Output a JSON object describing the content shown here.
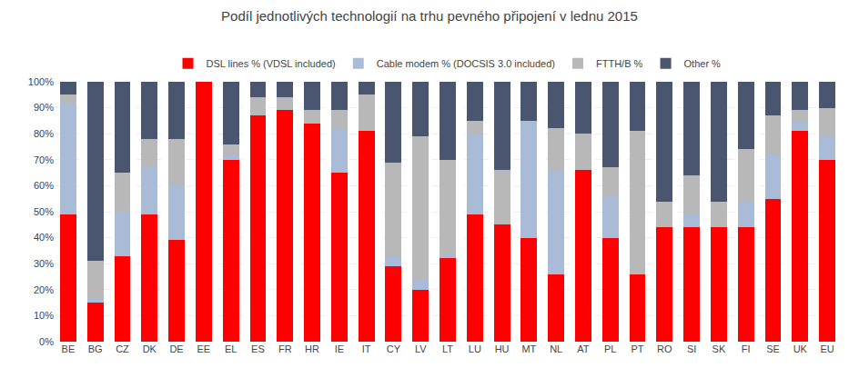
{
  "chart_data": {
    "type": "bar",
    "stacked": true,
    "title": "Podíl jednotlivých technologií na trhu pevného připojení v lednu 2015",
    "categories": [
      "BE",
      "BG",
      "CZ",
      "DK",
      "DE",
      "EE",
      "EL",
      "ES",
      "FR",
      "HR",
      "IE",
      "IT",
      "CY",
      "LV",
      "LT",
      "LU",
      "HU",
      "MT",
      "NL",
      "AT",
      "PL",
      "PT",
      "RO",
      "SI",
      "SK",
      "FI",
      "SE",
      "UK",
      "EU"
    ],
    "series": [
      {
        "name": "DSL lines % (VDSL included)",
        "color": "#FF0000",
        "values": [
          49,
          15,
          33,
          49,
          39,
          100,
          70,
          87,
          89,
          84,
          65,
          81,
          29,
          20,
          32,
          49,
          45,
          40,
          26,
          66,
          40,
          26,
          44,
          44,
          44,
          44,
          55,
          81,
          70
        ]
      },
      {
        "name": "Cable modem % (DOCSIS 3.0 included)",
        "color": "#AABBD8",
        "values": [
          43,
          2,
          17,
          18,
          21,
          0,
          2,
          0,
          0,
          0,
          17,
          0,
          4,
          4,
          2,
          31,
          0,
          45,
          40,
          0,
          16,
          0,
          0,
          5,
          0,
          10,
          17,
          4,
          9
        ]
      },
      {
        "name": "FTTH/B %",
        "color": "#B8B8B8",
        "values": [
          3,
          14,
          15,
          11,
          18,
          0,
          4,
          7,
          5,
          5,
          7,
          14,
          36,
          55,
          36,
          5,
          21,
          0,
          16,
          14,
          11,
          55,
          10,
          15,
          10,
          20,
          15,
          4,
          11
        ]
      },
      {
        "name": "Other %",
        "color": "#4A5570",
        "values": [
          5,
          69,
          35,
          22,
          22,
          0,
          24,
          6,
          6,
          11,
          11,
          5,
          31,
          21,
          30,
          15,
          34,
          15,
          18,
          20,
          33,
          19,
          46,
          36,
          46,
          26,
          13,
          11,
          10
        ]
      }
    ],
    "ylim": [
      0,
      100
    ],
    "yticks": [
      {
        "value": 0,
        "label": "0%"
      },
      {
        "value": 10,
        "label": "10%"
      },
      {
        "value": 20,
        "label": "20%"
      },
      {
        "value": 30,
        "label": "30%"
      },
      {
        "value": 40,
        "label": "40%"
      },
      {
        "value": 50,
        "label": "50%"
      },
      {
        "value": 60,
        "label": "60%"
      },
      {
        "value": 70,
        "label": "70%"
      },
      {
        "value": 80,
        "label": "80%"
      },
      {
        "value": 90,
        "label": "90%"
      },
      {
        "value": 100,
        "label": "100%"
      }
    ],
    "grid": true,
    "legend": "top"
  }
}
